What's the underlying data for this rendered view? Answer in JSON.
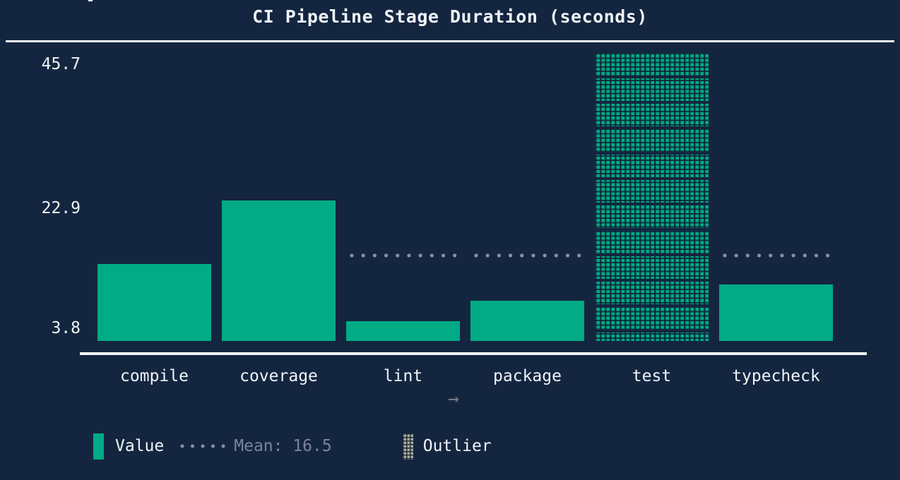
{
  "title": "CI Pipeline Stage Duration (seconds)",
  "chart_data": {
    "type": "bar",
    "title": "CI Pipeline Stage Duration (seconds)",
    "categories": [
      "compile",
      "coverage",
      "lint",
      "package",
      "test",
      "typecheck"
    ],
    "values": [
      12.2,
      22.3,
      3.1,
      6.4,
      45.7,
      9.0
    ],
    "outlier_index": 4,
    "outlier_category": "test",
    "mean": 16.5,
    "yticks": [
      45.7,
      22.9,
      3.8
    ],
    "ylim": [
      0,
      45.7
    ],
    "xlabel": "",
    "ylabel": "",
    "grid": false,
    "legend_position": "bottom",
    "legend_entries": [
      "Value",
      "Mean: 16.5",
      "Outlier"
    ]
  },
  "legend": {
    "value_label": "Value",
    "mean_label": "Mean: 16.5",
    "outlier_label": "Outlier"
  },
  "pager": {
    "arrow": "→"
  },
  "colors": {
    "background": "#14263f",
    "bar": "#00ab85",
    "text": "#f0f4f8",
    "muted": "#8990ad",
    "axis": "#f5f7fa",
    "outlier_swatch": "#a9ac9d"
  }
}
